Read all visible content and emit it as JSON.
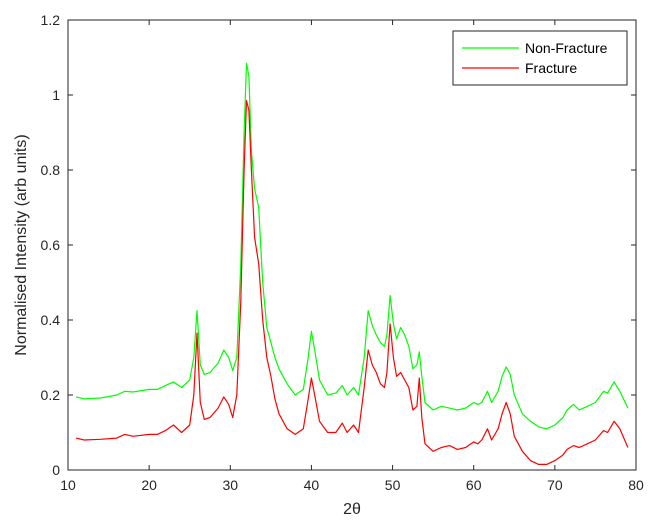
{
  "chart_data": {
    "type": "line",
    "xlabel": "2θ",
    "ylabel": "Normalised Intensity (arb units)",
    "xlim": [
      10,
      80
    ],
    "ylim": [
      0,
      1.2
    ],
    "xticks": [
      "10",
      "20",
      "30",
      "40",
      "50",
      "60",
      "70",
      "80"
    ],
    "yticks": [
      "0",
      "0.2",
      "0.4",
      "0.6",
      "0.8",
      "1",
      "1.2"
    ],
    "grid": false,
    "legend_position": "top-right",
    "series": [
      {
        "name": "Non-Fracture",
        "color": "#00ff00",
        "points": [
          [
            11,
            0.195
          ],
          [
            12,
            0.19
          ],
          [
            14,
            0.192
          ],
          [
            16,
            0.2
          ],
          [
            17,
            0.21
          ],
          [
            18,
            0.208
          ],
          [
            20,
            0.215
          ],
          [
            21,
            0.215
          ],
          [
            22,
            0.225
          ],
          [
            23,
            0.235
          ],
          [
            24,
            0.22
          ],
          [
            25,
            0.24
          ],
          [
            25.5,
            0.3
          ],
          [
            25.9,
            0.425
          ],
          [
            26.3,
            0.28
          ],
          [
            26.8,
            0.255
          ],
          [
            27.5,
            0.26
          ],
          [
            28.5,
            0.285
          ],
          [
            29.2,
            0.32
          ],
          [
            29.8,
            0.3
          ],
          [
            30.3,
            0.265
          ],
          [
            30.8,
            0.3
          ],
          [
            31.3,
            0.55
          ],
          [
            31.7,
            0.9
          ],
          [
            32.0,
            1.085
          ],
          [
            32.3,
            1.05
          ],
          [
            32.6,
            0.85
          ],
          [
            33.0,
            0.75
          ],
          [
            33.5,
            0.7
          ],
          [
            34.0,
            0.5
          ],
          [
            34.5,
            0.38
          ],
          [
            35.0,
            0.34
          ],
          [
            35.5,
            0.3
          ],
          [
            36.0,
            0.27
          ],
          [
            37,
            0.23
          ],
          [
            38,
            0.2
          ],
          [
            39,
            0.215
          ],
          [
            39.6,
            0.3
          ],
          [
            40.0,
            0.37
          ],
          [
            40.4,
            0.32
          ],
          [
            41,
            0.24
          ],
          [
            42,
            0.2
          ],
          [
            43,
            0.205
          ],
          [
            43.8,
            0.225
          ],
          [
            44.4,
            0.2
          ],
          [
            45.2,
            0.22
          ],
          [
            45.8,
            0.2
          ],
          [
            46.5,
            0.3
          ],
          [
            47.0,
            0.425
          ],
          [
            47.5,
            0.385
          ],
          [
            48.0,
            0.36
          ],
          [
            48.5,
            0.34
          ],
          [
            49.0,
            0.33
          ],
          [
            49.3,
            0.36
          ],
          [
            49.7,
            0.465
          ],
          [
            50.1,
            0.39
          ],
          [
            50.5,
            0.35
          ],
          [
            51.0,
            0.38
          ],
          [
            51.5,
            0.36
          ],
          [
            52.0,
            0.33
          ],
          [
            52.5,
            0.27
          ],
          [
            53.0,
            0.28
          ],
          [
            53.3,
            0.315
          ],
          [
            53.6,
            0.25
          ],
          [
            54.0,
            0.18
          ],
          [
            55,
            0.16
          ],
          [
            56,
            0.17
          ],
          [
            57,
            0.165
          ],
          [
            58,
            0.16
          ],
          [
            59,
            0.165
          ],
          [
            60,
            0.18
          ],
          [
            60.5,
            0.175
          ],
          [
            61,
            0.18
          ],
          [
            61.7,
            0.21
          ],
          [
            62.2,
            0.18
          ],
          [
            63,
            0.21
          ],
          [
            63.5,
            0.25
          ],
          [
            64.0,
            0.275
          ],
          [
            64.5,
            0.255
          ],
          [
            65,
            0.2
          ],
          [
            66,
            0.15
          ],
          [
            67,
            0.13
          ],
          [
            68,
            0.115
          ],
          [
            69,
            0.11
          ],
          [
            70,
            0.12
          ],
          [
            71,
            0.14
          ],
          [
            71.5,
            0.16
          ],
          [
            72.3,
            0.175
          ],
          [
            73,
            0.16
          ],
          [
            74,
            0.17
          ],
          [
            75,
            0.18
          ],
          [
            76,
            0.21
          ],
          [
            76.5,
            0.205
          ],
          [
            77.3,
            0.235
          ],
          [
            78,
            0.21
          ],
          [
            79,
            0.165
          ]
        ]
      },
      {
        "name": "Fracture",
        "color": "#ff0000",
        "points": [
          [
            11,
            0.085
          ],
          [
            12,
            0.08
          ],
          [
            14,
            0.082
          ],
          [
            16,
            0.085
          ],
          [
            17,
            0.095
          ],
          [
            18,
            0.09
          ],
          [
            20,
            0.095
          ],
          [
            21,
            0.095
          ],
          [
            22,
            0.105
          ],
          [
            23,
            0.12
          ],
          [
            24,
            0.1
          ],
          [
            25,
            0.12
          ],
          [
            25.5,
            0.2
          ],
          [
            25.9,
            0.365
          ],
          [
            26.3,
            0.18
          ],
          [
            26.8,
            0.135
          ],
          [
            27.5,
            0.14
          ],
          [
            28.5,
            0.165
          ],
          [
            29.2,
            0.195
          ],
          [
            29.8,
            0.175
          ],
          [
            30.3,
            0.14
          ],
          [
            30.8,
            0.2
          ],
          [
            31.3,
            0.45
          ],
          [
            31.7,
            0.8
          ],
          [
            32.0,
            0.985
          ],
          [
            32.3,
            0.96
          ],
          [
            32.6,
            0.8
          ],
          [
            33.0,
            0.62
          ],
          [
            33.5,
            0.55
          ],
          [
            34.0,
            0.4
          ],
          [
            34.5,
            0.3
          ],
          [
            35.0,
            0.25
          ],
          [
            35.5,
            0.19
          ],
          [
            36.0,
            0.15
          ],
          [
            37,
            0.11
          ],
          [
            38,
            0.095
          ],
          [
            39,
            0.11
          ],
          [
            39.6,
            0.19
          ],
          [
            40.0,
            0.245
          ],
          [
            40.4,
            0.2
          ],
          [
            41,
            0.13
          ],
          [
            42,
            0.1
          ],
          [
            43,
            0.1
          ],
          [
            43.8,
            0.125
          ],
          [
            44.4,
            0.1
          ],
          [
            45.2,
            0.12
          ],
          [
            45.8,
            0.1
          ],
          [
            46.5,
            0.22
          ],
          [
            47.0,
            0.32
          ],
          [
            47.5,
            0.28
          ],
          [
            48.0,
            0.26
          ],
          [
            48.5,
            0.23
          ],
          [
            49.0,
            0.22
          ],
          [
            49.3,
            0.26
          ],
          [
            49.7,
            0.39
          ],
          [
            50.1,
            0.3
          ],
          [
            50.5,
            0.25
          ],
          [
            51.0,
            0.26
          ],
          [
            51.5,
            0.24
          ],
          [
            52.0,
            0.22
          ],
          [
            52.5,
            0.16
          ],
          [
            53.0,
            0.17
          ],
          [
            53.3,
            0.245
          ],
          [
            53.6,
            0.14
          ],
          [
            54.0,
            0.07
          ],
          [
            55,
            0.05
          ],
          [
            56,
            0.06
          ],
          [
            57,
            0.065
          ],
          [
            58,
            0.055
          ],
          [
            59,
            0.06
          ],
          [
            60,
            0.075
          ],
          [
            60.5,
            0.07
          ],
          [
            61,
            0.08
          ],
          [
            61.7,
            0.11
          ],
          [
            62.2,
            0.08
          ],
          [
            63,
            0.11
          ],
          [
            63.5,
            0.15
          ],
          [
            64.0,
            0.18
          ],
          [
            64.5,
            0.15
          ],
          [
            65,
            0.09
          ],
          [
            66,
            0.05
          ],
          [
            67,
            0.025
          ],
          [
            68,
            0.015
          ],
          [
            69,
            0.015
          ],
          [
            70,
            0.025
          ],
          [
            71,
            0.04
          ],
          [
            71.5,
            0.055
          ],
          [
            72.3,
            0.065
          ],
          [
            73,
            0.06
          ],
          [
            74,
            0.07
          ],
          [
            75,
            0.08
          ],
          [
            76,
            0.105
          ],
          [
            76.5,
            0.1
          ],
          [
            77.3,
            0.13
          ],
          [
            78,
            0.11
          ],
          [
            79,
            0.06
          ]
        ]
      }
    ]
  }
}
